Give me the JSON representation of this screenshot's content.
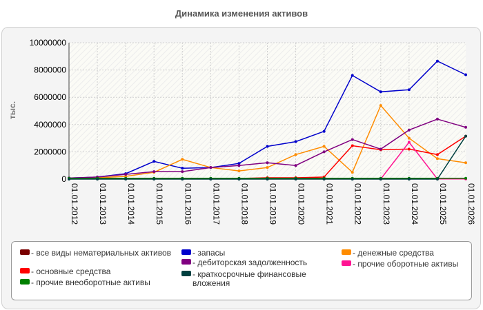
{
  "chart_data": {
    "type": "line",
    "title": "Динамика изменения активов",
    "xlabel": "",
    "ylabel": "тыс.",
    "ylim": [
      0,
      10000000
    ],
    "yticks": [
      "0",
      "2000000",
      "4000000",
      "6000000",
      "8000000",
      "10000000"
    ],
    "categories": [
      "01.01.2012",
      "01.01.2013",
      "01.01.2014",
      "01.01.2015",
      "01.01.2016",
      "01.01.2017",
      "01.01.2018",
      "01.01.2019",
      "01.01.2020",
      "01.01.2021",
      "01.01.2022",
      "01.01.2023",
      "01.01.2024",
      "01.01.2025",
      "01.01.2026"
    ],
    "grid": true,
    "legend_position": "bottom",
    "series": [
      {
        "name": "все виды нематериальных активов",
        "color": "#7a0000",
        "values": [
          20000,
          20000,
          20000,
          20000,
          20000,
          20000,
          20000,
          20000,
          20000,
          20000,
          20000,
          20000,
          20000,
          20000,
          20000
        ]
      },
      {
        "name": "запасы",
        "color": "#0000cc",
        "values": [
          80000,
          150000,
          400000,
          1300000,
          800000,
          850000,
          1150000,
          2400000,
          2750000,
          3500000,
          7600000,
          6400000,
          6550000,
          8650000,
          7650000
        ]
      },
      {
        "name": "денежные средства",
        "color": "#ff8c00",
        "values": [
          50000,
          100000,
          200000,
          500000,
          1450000,
          850000,
          600000,
          850000,
          1800000,
          2400000,
          500000,
          5400000,
          3000000,
          1500000,
          1200000
        ]
      },
      {
        "name": "основные средства",
        "color": "#ff0000",
        "values": [
          40000,
          40000,
          40000,
          40000,
          40000,
          50000,
          50000,
          100000,
          100000,
          150000,
          2450000,
          2150000,
          2200000,
          1800000,
          3150000
        ]
      },
      {
        "name": "дебиторская задолженность",
        "color": "#800080",
        "values": [
          80000,
          150000,
          350000,
          550000,
          550000,
          850000,
          1000000,
          1200000,
          1000000,
          2000000,
          2900000,
          2200000,
          3600000,
          4400000,
          3800000
        ]
      },
      {
        "name": "прочие оборотные активы",
        "color": "#ff1493",
        "values": [
          10000,
          10000,
          10000,
          10000,
          10000,
          10000,
          10000,
          10000,
          10000,
          10000,
          10000,
          10000,
          2700000,
          10000,
          10000
        ]
      },
      {
        "name": "прочие внеоборотные активы",
        "color": "#008000",
        "values": [
          60000,
          60000,
          60000,
          60000,
          60000,
          60000,
          60000,
          60000,
          60000,
          60000,
          60000,
          60000,
          60000,
          60000,
          60000
        ]
      },
      {
        "name": "краткосрочные финансовые вложения",
        "color": "#004040",
        "values": [
          0,
          0,
          0,
          0,
          0,
          0,
          0,
          0,
          0,
          0,
          0,
          0,
          0,
          0,
          3150000
        ]
      }
    ]
  }
}
